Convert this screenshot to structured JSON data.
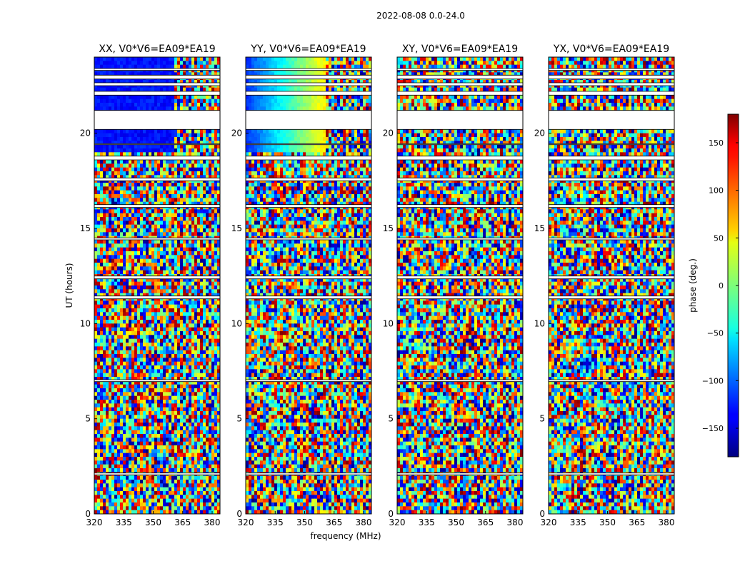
{
  "figure": {
    "suptitle": "2022-08-08 0.0-24.0"
  },
  "chart_data": {
    "type": "heatmap",
    "title": "2022-08-08 0.0-24.0",
    "xlabel": "frequency (MHz)",
    "ylabel": "UT (hours)",
    "colorbar_label": "phase (deg.)",
    "xlim": [
      320,
      384
    ],
    "ylim": [
      0,
      24
    ],
    "x_ticks": [
      320,
      335,
      350,
      365,
      380
    ],
    "y_ticks": [
      0,
      5,
      10,
      15,
      20
    ],
    "clim": [
      -180,
      180
    ],
    "colorbar_ticks": [
      -150,
      -100,
      -50,
      0,
      50,
      100,
      150
    ],
    "colormap": "jet",
    "panels": [
      {
        "title": "XX, V0*V6=EA09*EA19"
      },
      {
        "title": "YY, V0*V6=EA09*EA19"
      },
      {
        "title": "XY, V0*V6=EA09*EA19"
      },
      {
        "title": "YX, V0*V6=EA09*EA19"
      }
    ],
    "gaps_hours": [
      [
        2.05,
        2.15
      ],
      [
        6.95,
        7.05
      ],
      [
        11.3,
        11.45
      ],
      [
        12.35,
        12.5
      ],
      [
        14.4,
        14.5
      ],
      [
        16.1,
        16.25
      ],
      [
        17.5,
        17.65
      ],
      [
        18.6,
        18.8
      ],
      [
        19.4,
        19.45
      ],
      [
        20.2,
        21.2
      ],
      [
        22.0,
        22.2
      ],
      [
        22.5,
        22.65
      ],
      [
        22.85,
        23.05
      ],
      [
        23.3,
        23.4
      ]
    ]
  }
}
